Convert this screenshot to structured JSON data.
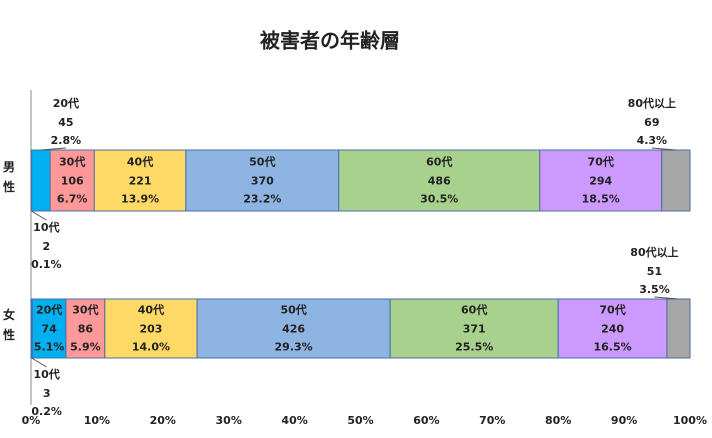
{
  "chart_data": {
    "type": "stacked-bar-100",
    "title": "被害者の年齢層",
    "categories": [
      "男性",
      "女性"
    ],
    "series": [
      {
        "name": "10代",
        "color": "#0070c0",
        "values": [
          0.1,
          0.2
        ],
        "value_labels": [
          "0.1%",
          "0.2%"
        ],
        "counts": [
          2,
          3
        ]
      },
      {
        "name": "20代",
        "color": "#00b0f0",
        "values": [
          2.8,
          5.1
        ],
        "value_labels": [
          "2.8%",
          "5.1%"
        ],
        "counts": [
          45,
          74
        ]
      },
      {
        "name": "30代",
        "color": "#ff9999",
        "values": [
          6.7,
          5.9
        ],
        "value_labels": [
          "6.7%",
          "5.9%"
        ],
        "counts": [
          106,
          86
        ]
      },
      {
        "name": "40代",
        "color": "#ffd966",
        "values": [
          13.9,
          14.0
        ],
        "value_labels": [
          "13.9%",
          "14.0%"
        ],
        "counts": [
          221,
          203
        ]
      },
      {
        "name": "50代",
        "color": "#8db4e2",
        "values": [
          23.2,
          29.3
        ],
        "value_labels": [
          "23.2%",
          "29.3%"
        ],
        "counts": [
          370,
          426
        ]
      },
      {
        "name": "60代",
        "color": "#a9d18e",
        "values": [
          30.5,
          25.5
        ],
        "value_labels": [
          "30.5%",
          "25.5%"
        ],
        "counts": [
          486,
          371
        ]
      },
      {
        "name": "70代",
        "color": "#cc99ff",
        "values": [
          18.5,
          16.5
        ],
        "value_labels": [
          "18.5%",
          "16.5%"
        ],
        "counts": [
          294,
          240
        ]
      },
      {
        "name": "80代以上",
        "color": "#a6a6a6",
        "values": [
          4.3,
          3.5
        ],
        "value_labels": [
          "4.3%",
          "3.5%"
        ],
        "counts": [
          69,
          51
        ]
      }
    ],
    "xlim": [
      0,
      100
    ],
    "xticks": [
      {
        "value": 0,
        "label": "0%"
      },
      {
        "value": 10,
        "label": "10%"
      },
      {
        "value": 20,
        "label": "20%"
      },
      {
        "value": 30,
        "label": "30%"
      },
      {
        "value": 40,
        "label": "40%"
      },
      {
        "value": 50,
        "label": "50%"
      },
      {
        "value": 60,
        "label": "60%"
      },
      {
        "value": 70,
        "label": "70%"
      },
      {
        "value": 80,
        "label": "80%"
      },
      {
        "value": 90,
        "label": "90%"
      },
      {
        "value": 100,
        "label": "100%"
      }
    ],
    "grid": false
  }
}
